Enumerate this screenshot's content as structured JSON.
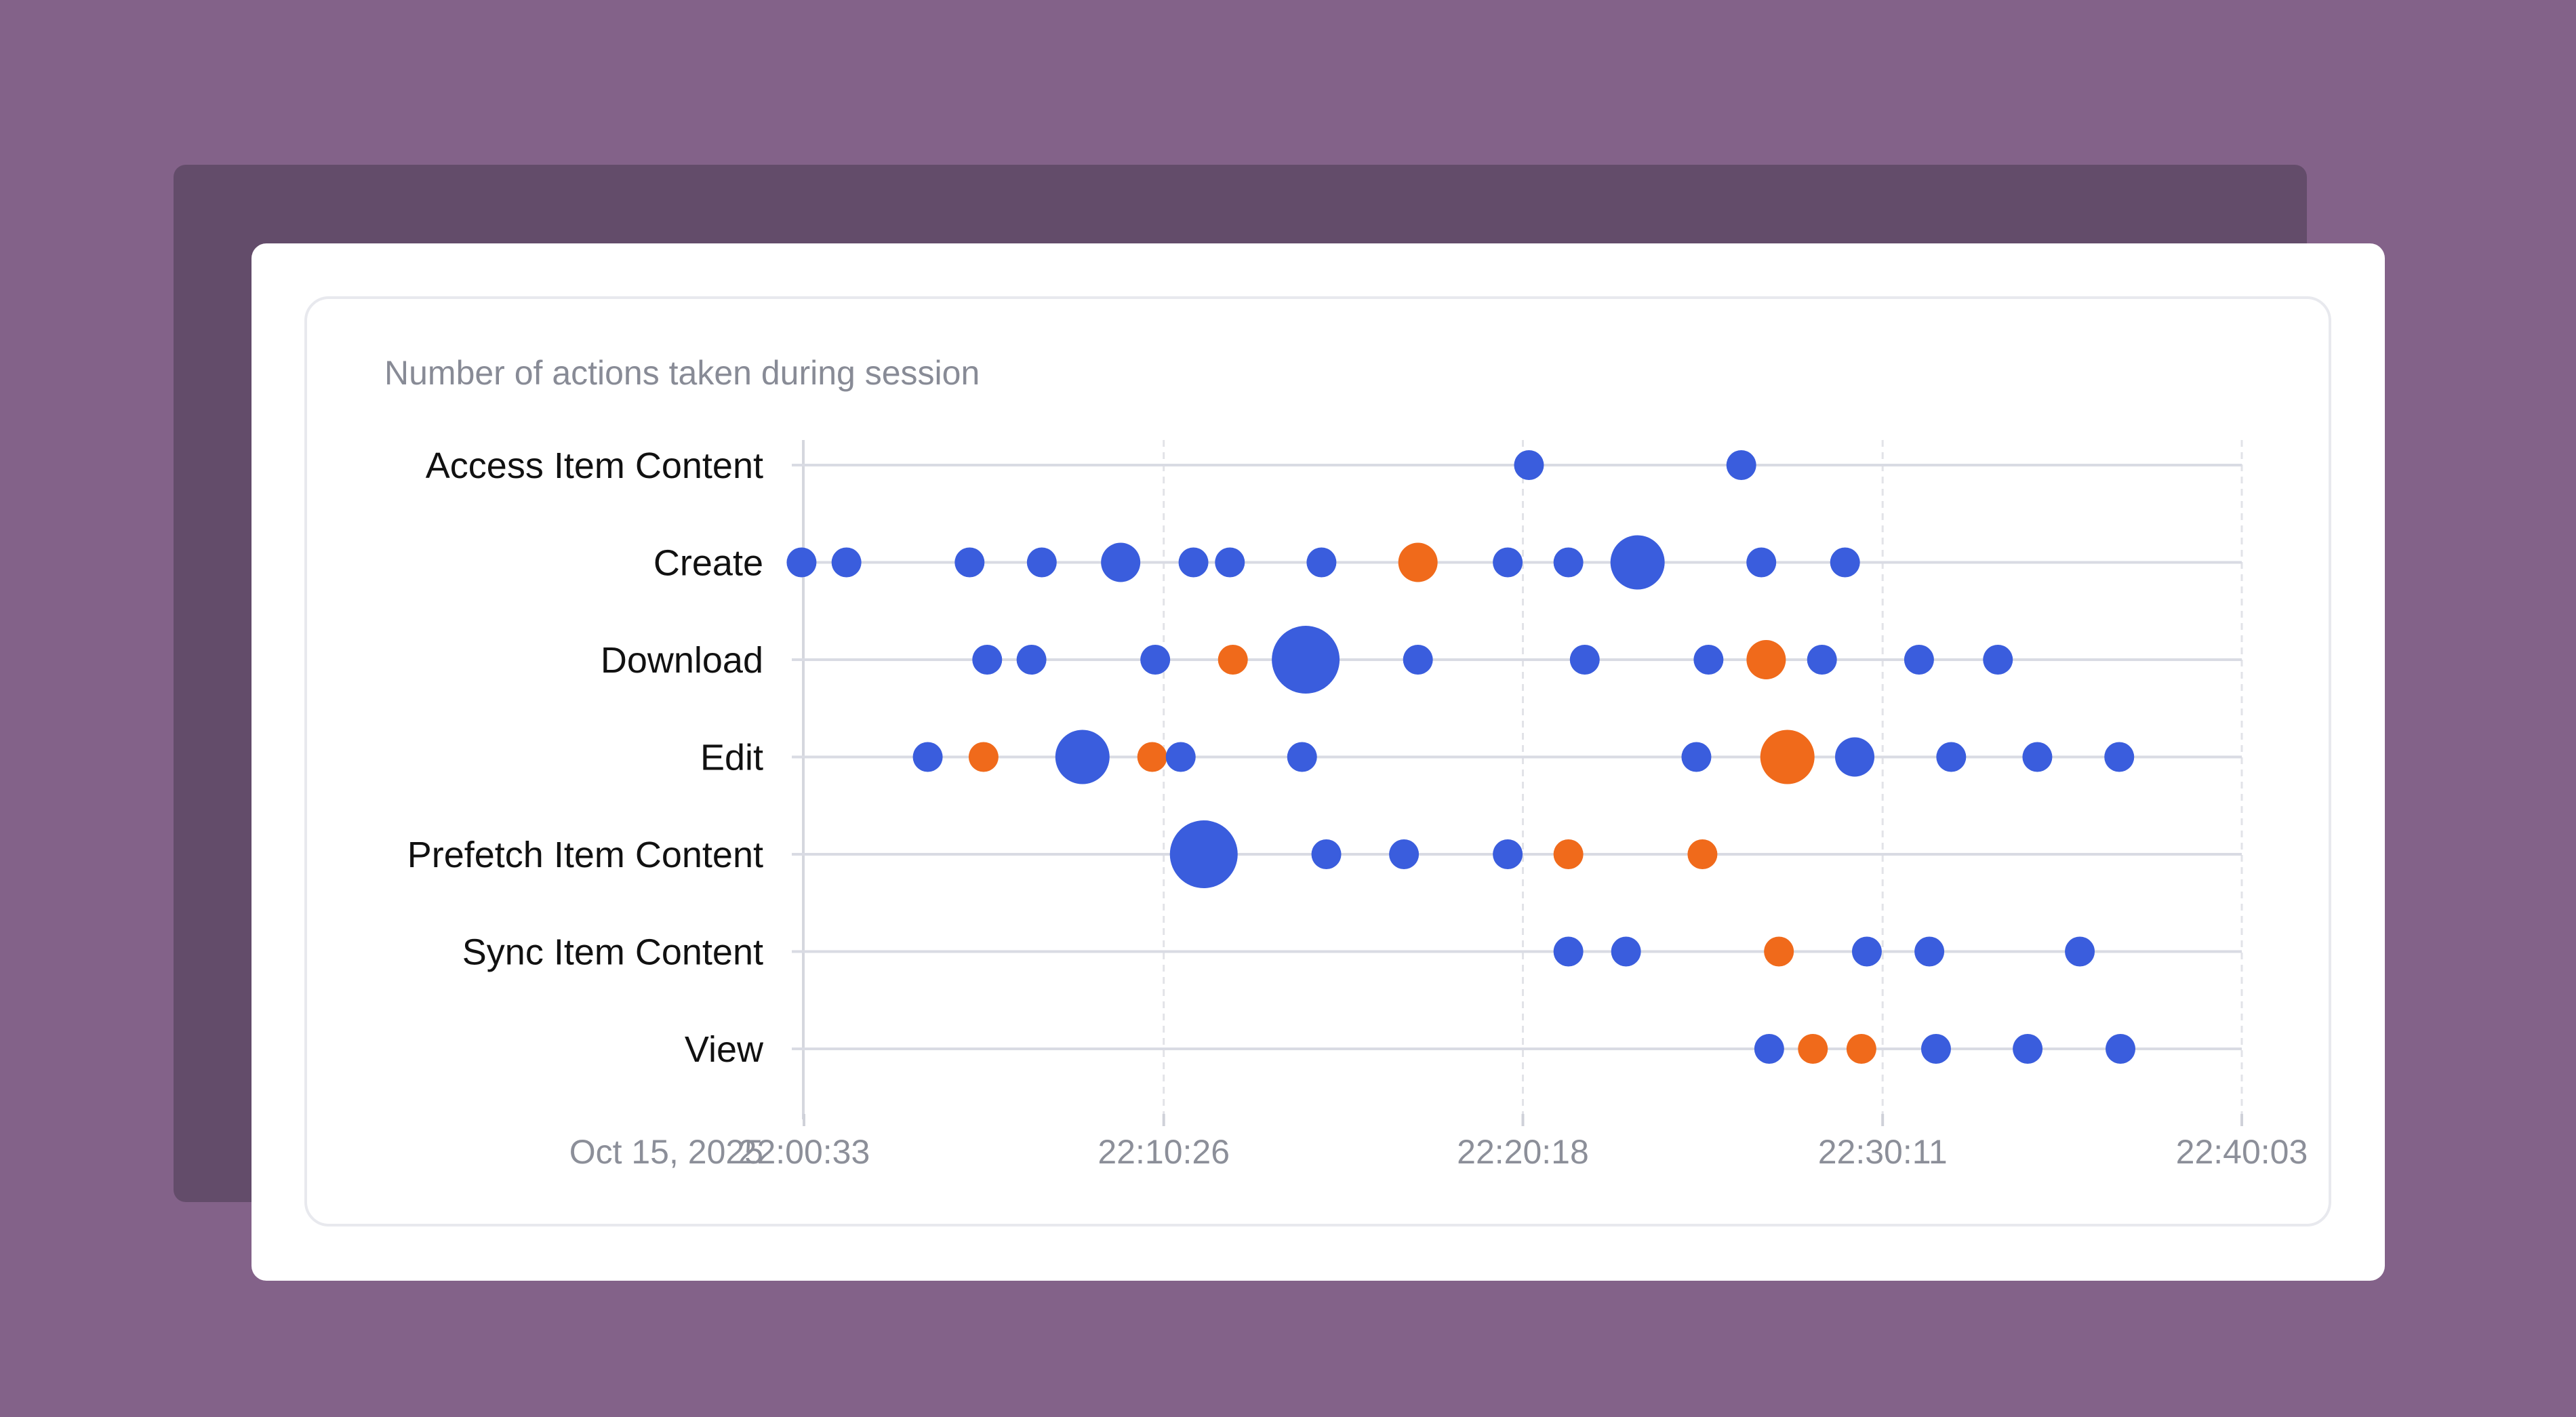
{
  "chart_data": {
    "type": "scatter",
    "title": "Number of actions taken during session",
    "date_label": "Oct 15, 2025",
    "x_ticks": [
      "22:00:33",
      "22:10:26",
      "22:20:18",
      "22:30:11",
      "22:40:03"
    ],
    "x_tick_seconds": [
      33,
      626,
      1218,
      1811,
      2403
    ],
    "xlim_seconds": [
      33,
      2403
    ],
    "categories": [
      "Access Item Content",
      "Create",
      "Download",
      "Edit",
      "Prefetch Item Content",
      "Sync Item Content",
      "View"
    ],
    "colors": {
      "blue": "#3a5ddd",
      "orange": "#f06a1b"
    },
    "grid": true,
    "points": [
      {
        "cat": 0,
        "t": 1228,
        "size": 1,
        "color": "blue"
      },
      {
        "cat": 0,
        "t": 1578,
        "size": 1,
        "color": "blue"
      },
      {
        "cat": 1,
        "t": 29,
        "size": 1,
        "color": "blue"
      },
      {
        "cat": 1,
        "t": 103,
        "size": 1,
        "color": "blue"
      },
      {
        "cat": 1,
        "t": 306,
        "size": 1,
        "color": "blue"
      },
      {
        "cat": 1,
        "t": 425,
        "size": 1,
        "color": "blue"
      },
      {
        "cat": 1,
        "t": 555,
        "size": 2,
        "color": "blue"
      },
      {
        "cat": 1,
        "t": 675,
        "size": 1,
        "color": "blue"
      },
      {
        "cat": 1,
        "t": 735,
        "size": 1,
        "color": "blue"
      },
      {
        "cat": 1,
        "t": 886,
        "size": 1,
        "color": "blue"
      },
      {
        "cat": 1,
        "t": 1045,
        "size": 2,
        "color": "orange"
      },
      {
        "cat": 1,
        "t": 1193,
        "size": 1,
        "color": "blue"
      },
      {
        "cat": 1,
        "t": 1293,
        "size": 1,
        "color": "blue"
      },
      {
        "cat": 1,
        "t": 1407,
        "size": 3,
        "color": "blue"
      },
      {
        "cat": 1,
        "t": 1611,
        "size": 1,
        "color": "blue"
      },
      {
        "cat": 1,
        "t": 1749,
        "size": 1,
        "color": "blue"
      },
      {
        "cat": 2,
        "t": 335,
        "size": 1,
        "color": "blue"
      },
      {
        "cat": 2,
        "t": 408,
        "size": 1,
        "color": "blue"
      },
      {
        "cat": 2,
        "t": 612,
        "size": 1,
        "color": "blue"
      },
      {
        "cat": 2,
        "t": 740,
        "size": 1,
        "color": "orange"
      },
      {
        "cat": 2,
        "t": 860,
        "size": 4,
        "color": "blue"
      },
      {
        "cat": 2,
        "t": 1045,
        "size": 1,
        "color": "blue"
      },
      {
        "cat": 2,
        "t": 1320,
        "size": 1,
        "color": "blue"
      },
      {
        "cat": 2,
        "t": 1524,
        "size": 1,
        "color": "blue"
      },
      {
        "cat": 2,
        "t": 1619,
        "size": 2,
        "color": "orange"
      },
      {
        "cat": 2,
        "t": 1711,
        "size": 1,
        "color": "blue"
      },
      {
        "cat": 2,
        "t": 1871,
        "size": 1,
        "color": "blue"
      },
      {
        "cat": 2,
        "t": 2001,
        "size": 1,
        "color": "blue"
      },
      {
        "cat": 3,
        "t": 237,
        "size": 1,
        "color": "blue"
      },
      {
        "cat": 3,
        "t": 329,
        "size": 1,
        "color": "orange"
      },
      {
        "cat": 3,
        "t": 492,
        "size": 3,
        "color": "blue"
      },
      {
        "cat": 3,
        "t": 607,
        "size": 1,
        "color": "orange"
      },
      {
        "cat": 3,
        "t": 654,
        "size": 1,
        "color": "blue"
      },
      {
        "cat": 3,
        "t": 854,
        "size": 1,
        "color": "blue"
      },
      {
        "cat": 3,
        "t": 1504,
        "size": 1,
        "color": "blue"
      },
      {
        "cat": 3,
        "t": 1654,
        "size": 3,
        "color": "orange"
      },
      {
        "cat": 3,
        "t": 1765,
        "size": 2,
        "color": "blue"
      },
      {
        "cat": 3,
        "t": 1924,
        "size": 1,
        "color": "blue"
      },
      {
        "cat": 3,
        "t": 2066,
        "size": 1,
        "color": "blue"
      },
      {
        "cat": 3,
        "t": 2201,
        "size": 1,
        "color": "blue"
      },
      {
        "cat": 4,
        "t": 692,
        "size": 4,
        "color": "blue"
      },
      {
        "cat": 4,
        "t": 894,
        "size": 1,
        "color": "blue"
      },
      {
        "cat": 4,
        "t": 1022,
        "size": 1,
        "color": "blue"
      },
      {
        "cat": 4,
        "t": 1193,
        "size": 1,
        "color": "blue"
      },
      {
        "cat": 4,
        "t": 1293,
        "size": 1,
        "color": "orange"
      },
      {
        "cat": 4,
        "t": 1514,
        "size": 1,
        "color": "orange"
      },
      {
        "cat": 5,
        "t": 1293,
        "size": 1,
        "color": "blue"
      },
      {
        "cat": 5,
        "t": 1388,
        "size": 1,
        "color": "blue"
      },
      {
        "cat": 5,
        "t": 1640,
        "size": 1,
        "color": "orange"
      },
      {
        "cat": 5,
        "t": 1785,
        "size": 1,
        "color": "blue"
      },
      {
        "cat": 5,
        "t": 1888,
        "size": 1,
        "color": "blue"
      },
      {
        "cat": 5,
        "t": 2136,
        "size": 1,
        "color": "blue"
      },
      {
        "cat": 6,
        "t": 1624,
        "size": 1,
        "color": "blue"
      },
      {
        "cat": 6,
        "t": 1696,
        "size": 1,
        "color": "orange"
      },
      {
        "cat": 6,
        "t": 1776,
        "size": 1,
        "color": "orange"
      },
      {
        "cat": 6,
        "t": 1899,
        "size": 1,
        "color": "blue"
      },
      {
        "cat": 6,
        "t": 2050,
        "size": 1,
        "color": "blue"
      },
      {
        "cat": 6,
        "t": 2203,
        "size": 1,
        "color": "blue"
      }
    ]
  }
}
